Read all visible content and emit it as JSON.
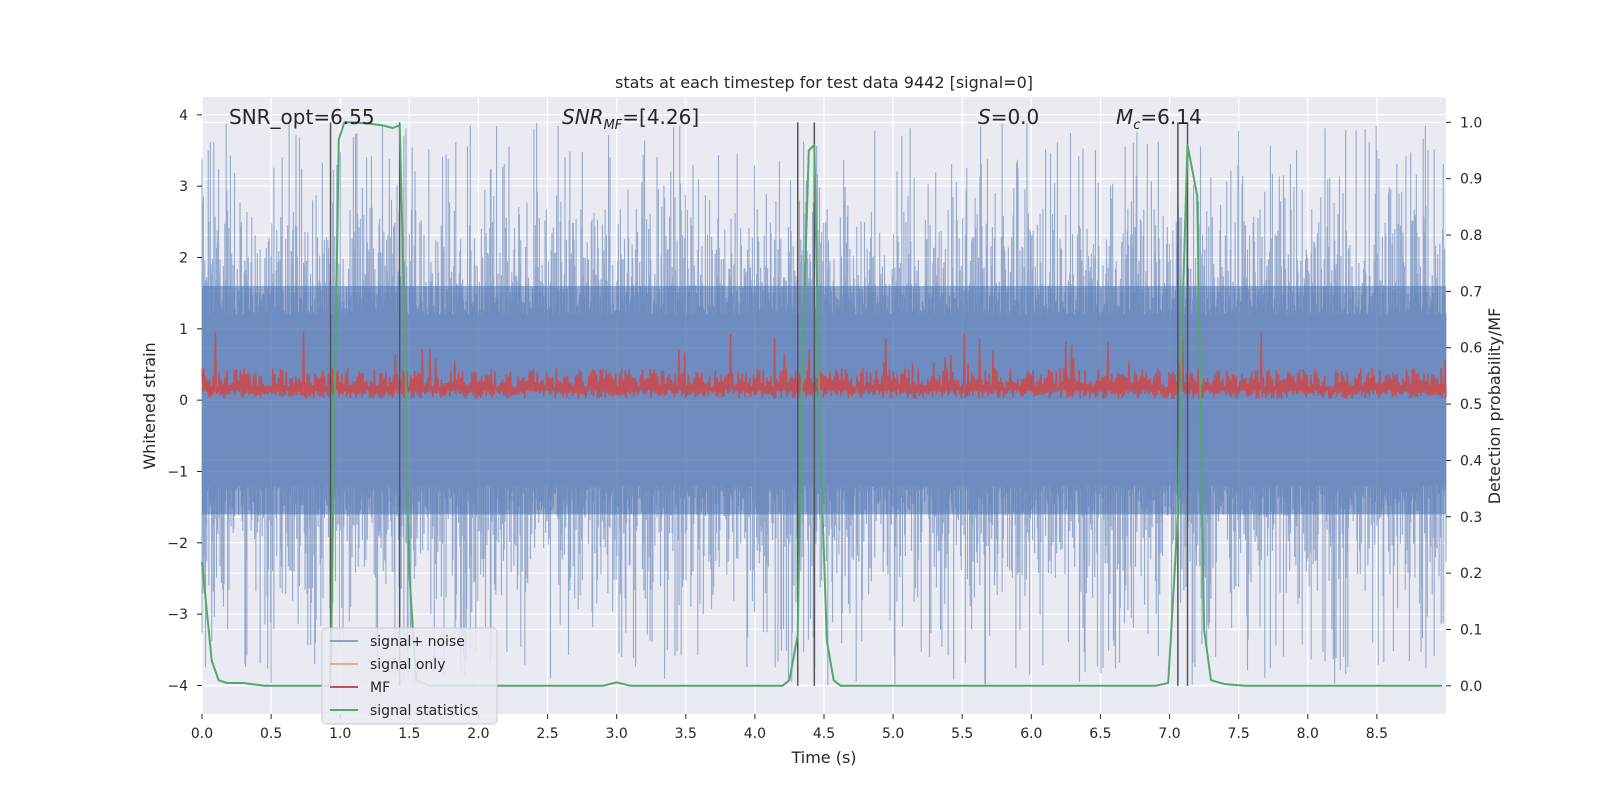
{
  "chart_data": {
    "type": "line",
    "title": "stats at each timestep for test data 9442 [signal=0]",
    "xlabel": "Time (s)",
    "ylabel": "Whitened strain",
    "ylabel_right": "Detection probability/MF",
    "xlim": [
      0.0,
      9.0
    ],
    "ylim": [
      -4.4,
      4.25
    ],
    "ylim_right": [
      -0.05,
      1.045
    ],
    "xticks": [
      "0.0",
      "0.5",
      "1.0",
      "1.5",
      "2.0",
      "2.5",
      "3.0",
      "3.5",
      "4.0",
      "4.5",
      "5.0",
      "5.5",
      "6.0",
      "6.5",
      "7.0",
      "7.5",
      "8.0",
      "8.5"
    ],
    "yticks": [
      "4",
      "3",
      "2",
      "1",
      "0",
      "−1",
      "−2",
      "−3",
      "−4"
    ],
    "yticks_right": [
      "1.0",
      "0.9",
      "0.8",
      "0.7",
      "0.6",
      "0.5",
      "0.4",
      "0.3",
      "0.2",
      "0.1",
      "0.0"
    ],
    "annotations": {
      "snr_opt": "SNR_opt=6.55",
      "snr_mf_main": "SNR",
      "snr_mf_sub": "MF",
      "snr_mf_value": "=[4.26]",
      "s_main": "S",
      "s_value": "=0.0",
      "mc_main": "M",
      "mc_sub": "c",
      "mc_value": "=6.14"
    },
    "vlines_x": [
      0.93,
      1.43,
      4.31,
      4.43,
      7.06,
      7.13
    ],
    "series": [
      {
        "name": "signal+ noise",
        "color": "#4c72b0",
        "axis": "left",
        "band": {
          "upper_typical": 1.6,
          "upper_peak": 3.9,
          "lower_typical": -1.6,
          "lower_peak": -4.0
        }
      },
      {
        "name": "signal only",
        "color": "#dd8452",
        "axis": "left",
        "values": []
      },
      {
        "name": "MF",
        "color": "#c44e52",
        "axis": "left",
        "band": {
          "base": 0.02,
          "upper_typical": 0.45,
          "upper_peak": 1.0
        }
      },
      {
        "name": "signal statistics",
        "color": "#55a868",
        "axis": "right",
        "x": [
          0.0,
          0.07,
          0.12,
          0.18,
          0.3,
          0.45,
          0.6,
          0.8,
          0.93,
          0.96,
          0.99,
          1.03,
          1.1,
          1.2,
          1.3,
          1.38,
          1.43,
          1.47,
          1.5,
          1.55,
          1.6,
          1.65,
          1.8,
          2.0,
          2.5,
          2.9,
          3.0,
          3.1,
          3.3,
          3.6,
          4.0,
          4.2,
          4.25,
          4.31,
          4.34,
          4.39,
          4.43,
          4.47,
          4.52,
          4.57,
          4.62,
          4.8,
          5.5,
          6.0,
          6.5,
          6.9,
          6.99,
          7.06,
          7.09,
          7.13,
          7.2,
          7.25,
          7.3,
          7.4,
          7.55,
          8.0,
          8.5,
          8.97
        ],
        "values": [
          0.22,
          0.045,
          0.01,
          0.005,
          0.005,
          0.0,
          0.0,
          0.0,
          0.0,
          0.5,
          0.97,
          1.0,
          1.0,
          0.998,
          0.995,
          0.99,
          0.995,
          0.6,
          0.2,
          0.01,
          0.005,
          0.0,
          0.0,
          0.0,
          0.0,
          0.0,
          0.006,
          0.0,
          0.0,
          0.0,
          0.0,
          0.0,
          0.01,
          0.09,
          0.55,
          0.95,
          0.96,
          0.45,
          0.08,
          0.01,
          0.0,
          0.0,
          0.0,
          0.0,
          0.0,
          0.0,
          0.005,
          0.3,
          0.63,
          0.96,
          0.87,
          0.1,
          0.01,
          0.003,
          0.0,
          0.0,
          0.0,
          0.0
        ]
      }
    ],
    "legend": {
      "position": "lower-left",
      "entries": [
        "signal+ noise",
        "signal only",
        "MF",
        "signal statistics"
      ]
    }
  }
}
